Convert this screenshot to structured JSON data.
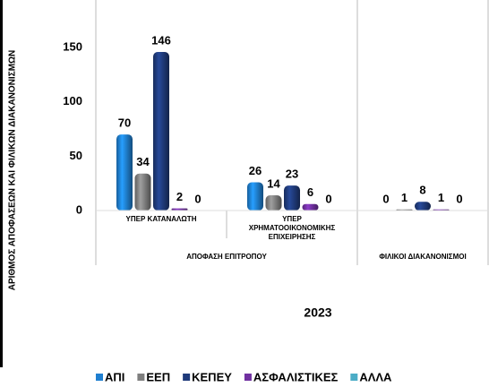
{
  "chart_data": {
    "type": "bar",
    "ylabel": "ΑΡΙΘΜΟΣ ΑΠΟΦΑΣΕΩΝ ΚΑΙ ΦΙΛΙΚΩΝ ΔΙΑΚΑΝΟΝΙΣΜΩΝ",
    "xlabel": "2023",
    "categories": [
      "ΥΠΕΡ ΚΑΤΑΝΑΛΩΤΗ",
      "ΥΠΕΡ ΧΡΗΜΑΤΟΟΙΚΟΝΟΜΙΚΗΣ ΕΠΙΧΕΙΡΗΣΗΣ",
      null
    ],
    "category_groups": [
      "ΑΠΟΦΑΣΗ ΕΠΙΤΡΟΠΟΥ",
      "ΑΠΟΦΑΣΗ ΕΠΙΤΡΟΠΟΥ",
      "ΦΙΛΙΚΟΙ ΔΙΑΚΑΝΟΝΙΣΜΟΙ"
    ],
    "series": [
      {
        "name": "ΑΠΙ",
        "color": "#1f7fd0",
        "values": [
          70,
          26,
          0
        ]
      },
      {
        "name": "ΕΕΠ",
        "color": "#7f7f7f",
        "values": [
          34,
          14,
          1
        ]
      },
      {
        "name": "ΚΕΠΕΥ",
        "color": "#1f3a7a",
        "values": [
          146,
          23,
          8
        ]
      },
      {
        "name": "ΑΣΦΑΛΙΣΤΙΚΕΣ",
        "color": "#7030a0",
        "values": [
          2,
          6,
          1
        ]
      },
      {
        "name": "ΑΛΛΑ",
        "color": "#4bacc6",
        "values": [
          0,
          0,
          0
        ]
      }
    ],
    "ylim": [
      0,
      160
    ],
    "yticks": [
      0,
      50,
      100,
      150
    ],
    "grid": false,
    "legend": "bottom"
  }
}
